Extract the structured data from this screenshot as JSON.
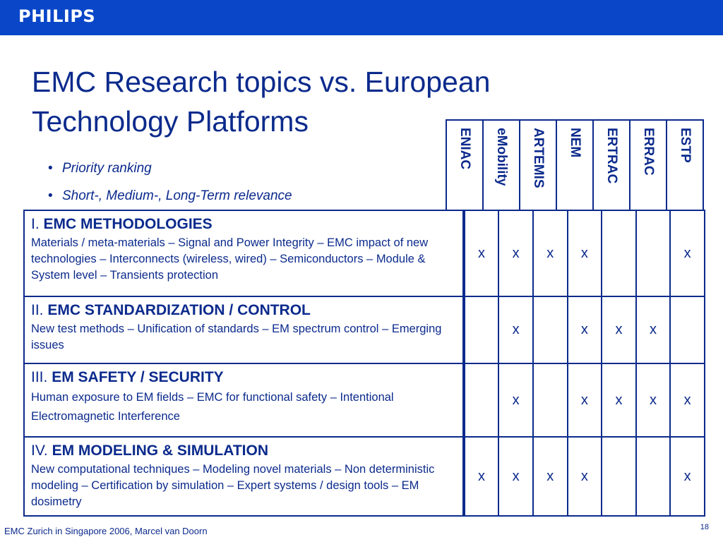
{
  "brand": "PHILIPS",
  "title": "EMC Research topics vs. European Technology Platforms",
  "bullets": [
    "Priority ranking",
    "Short-, Medium-, Long-Term relevance"
  ],
  "platforms": [
    "ENIAC",
    "eMobility",
    "ARTEMIS",
    "NEM",
    "ERTRAC",
    "ERRAC",
    "ESTP"
  ],
  "rows": [
    {
      "num": "I.",
      "heading": "EMC METHODOLOGIES",
      "desc": "Materials / meta-materials – Signal and Power Integrity – EMC impact of new technologies – Interconnects (wireless, wired) – Semiconductors – Module & System level – Transients protection",
      "marks": [
        "x",
        "x",
        "x",
        "x",
        "",
        "",
        "x"
      ]
    },
    {
      "num": "II.",
      "heading": "EMC STANDARDIZATION / CONTROL",
      "desc": "New test methods – Unification of standards – EM spectrum control – Emerging issues",
      "marks": [
        "",
        "x",
        "",
        "x",
        "x",
        "x",
        ""
      ]
    },
    {
      "num": "III.",
      "heading": "EM SAFETY / SECURITY",
      "desc": "Human exposure to EM fields – EMC for functional safety – Intentional Electromagnetic Interference",
      "marks": [
        "",
        "x",
        "",
        "x",
        "x",
        "x",
        "x"
      ]
    },
    {
      "num": "IV.",
      "heading": "EM MODELING & SIMULATION",
      "desc": "New computational techniques – Modeling novel materials – Non deterministic modeling – Certification by simulation – Expert systems / design tools – EM dosimetry",
      "marks": [
        "x",
        "x",
        "x",
        "x",
        "",
        "",
        "x"
      ]
    }
  ],
  "footer": "EMC Zurich in Singapore 2006, Marcel van Doorn",
  "page_number": "18",
  "colors": {
    "brand_bar": "#0a47c8",
    "text": "#0b2a8c"
  }
}
